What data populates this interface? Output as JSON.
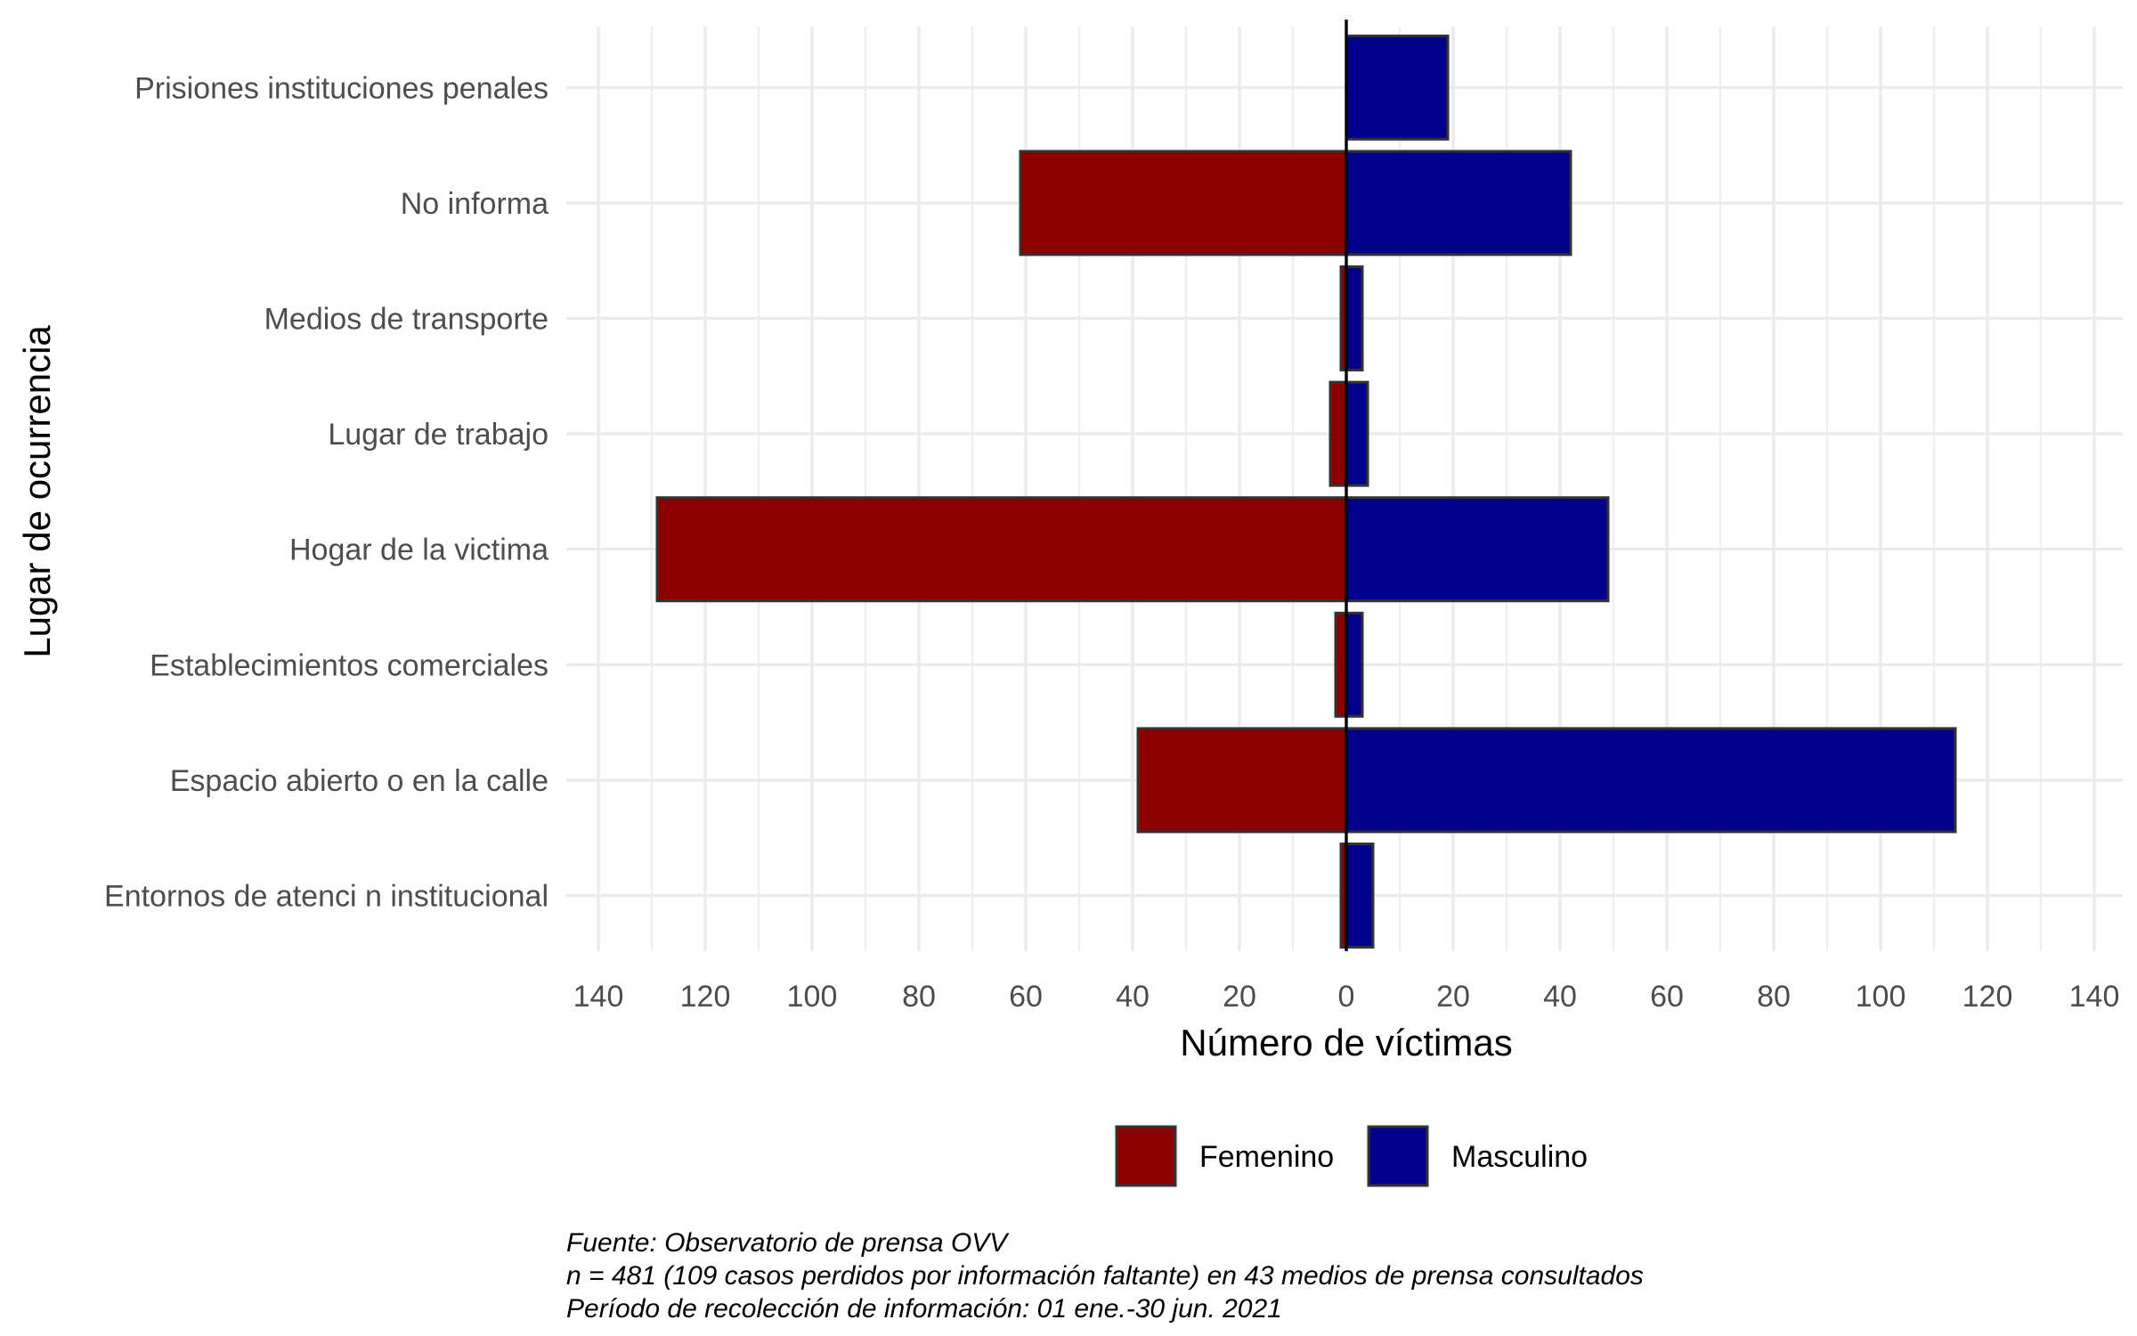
{
  "chart_data": {
    "type": "bar",
    "orientation": "horizontal-diverging",
    "categories": [
      "Entornos de atenci n institucional",
      "Espacio abierto o en la calle",
      "Establecimientos comerciales",
      "Hogar de la victima",
      "Lugar de trabajo",
      "Medios de transporte",
      "No informa",
      "Prisiones  instituciones penales"
    ],
    "series": [
      {
        "name": "Femenino",
        "color": "#8b0000",
        "values": [
          1,
          39,
          2,
          129,
          3,
          1,
          61,
          0
        ]
      },
      {
        "name": "Masculino",
        "color": "#00008b",
        "values": [
          5,
          114,
          3,
          49,
          4,
          3,
          42,
          19
        ]
      }
    ],
    "xlabel": "Número de víctimas",
    "ylabel": "Lugar de ocurrencia",
    "xlim": [
      -140,
      140
    ],
    "xticks": [
      -140,
      -120,
      -100,
      -80,
      -60,
      -40,
      -20,
      0,
      20,
      40,
      60,
      80,
      100,
      120,
      140
    ],
    "xtick_labels": [
      "140",
      "120",
      "100",
      "80",
      "60",
      "40",
      "20",
      "0",
      "20",
      "40",
      "60",
      "80",
      "100",
      "120",
      "140"
    ],
    "grid": true,
    "legend_position": "bottom",
    "caption": [
      "Fuente: Observatorio de prensa OVV",
      "n = 481 (109 casos perdidos por información faltante) en 43 medios de prensa consultados",
      "Período de recolección de información: 01 ene.-30 jun. 2021"
    ]
  }
}
